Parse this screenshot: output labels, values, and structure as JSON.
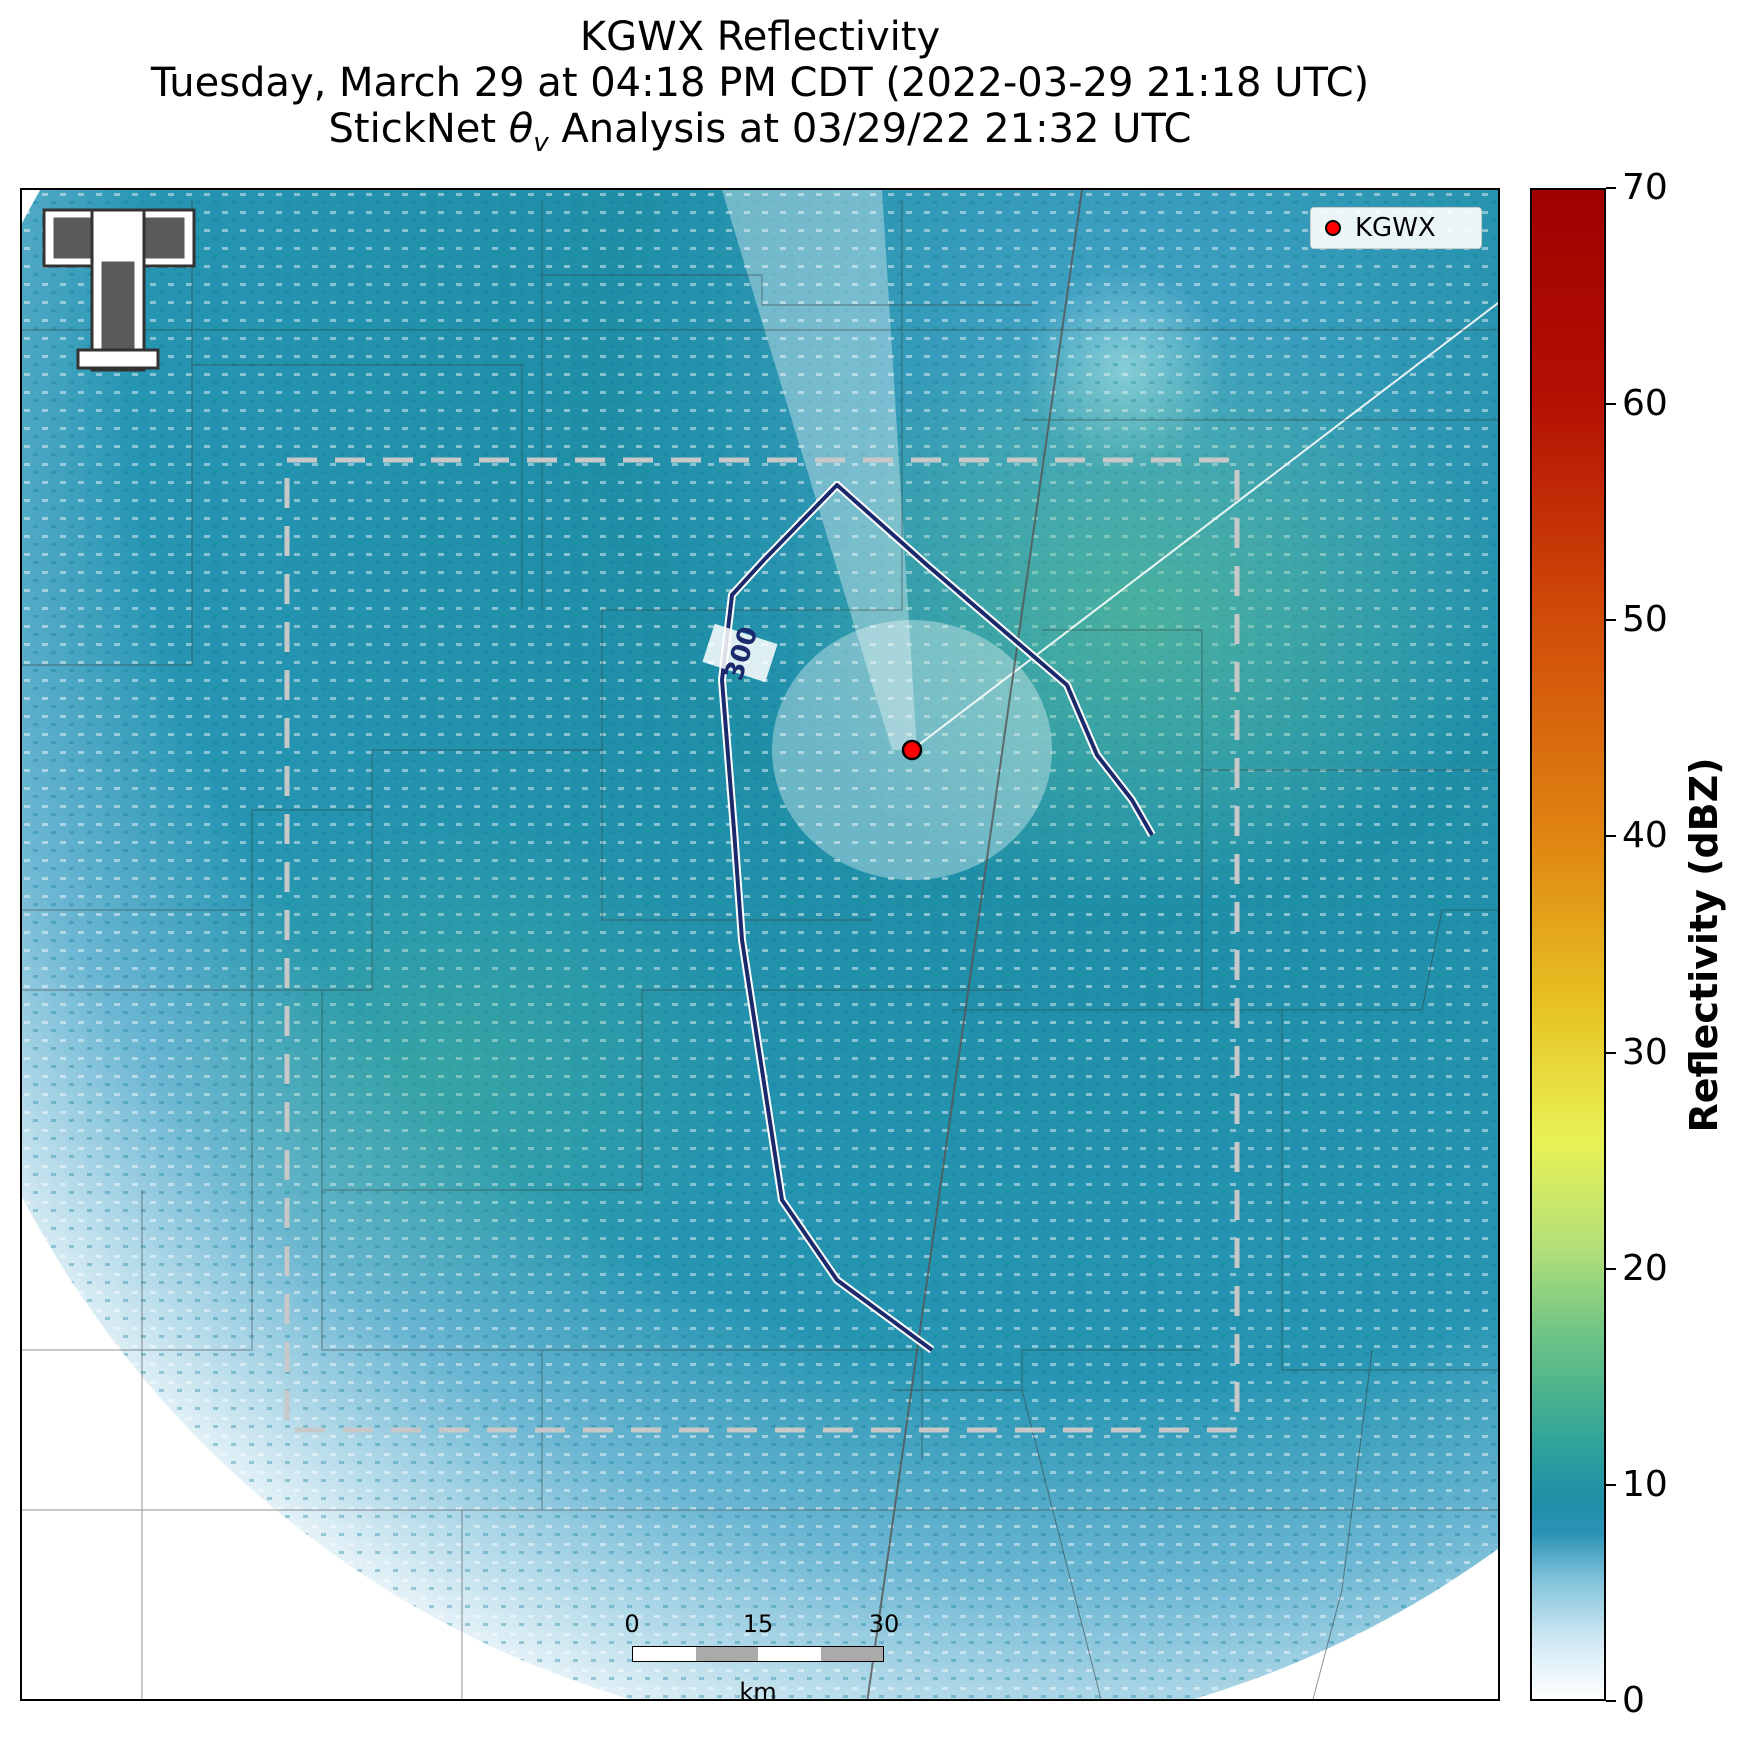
{
  "title": {
    "line1": "KGWX Reflectivity",
    "line2": "Tuesday, March 29 at 04:18 PM CDT (2022-03-29 21:18 UTC)",
    "line3_prefix": "StickNet ",
    "line3_symbol": "θ",
    "line3_subscript": "v",
    "line3_suffix": " Analysis at 03/29/22 21:32 UTC"
  },
  "legend": {
    "label": "KGWX",
    "marker_color": "#ff0000"
  },
  "contour": {
    "label": "300",
    "color": "#1a2a6c"
  },
  "colorbar": {
    "title": "Reflectivity (dBZ)",
    "ticks": [
      "0",
      "10",
      "20",
      "30",
      "40",
      "50",
      "60",
      "70"
    ],
    "min": 0,
    "max": 70
  },
  "scalebar": {
    "labels": [
      "0",
      "15",
      "30"
    ],
    "unit": "km"
  },
  "colors": {
    "echo_main": "#1f8fa8",
    "echo_light": "#8cc8dc",
    "echo_green": "#4cb590",
    "analysis_box": "#c8c8c8"
  }
}
